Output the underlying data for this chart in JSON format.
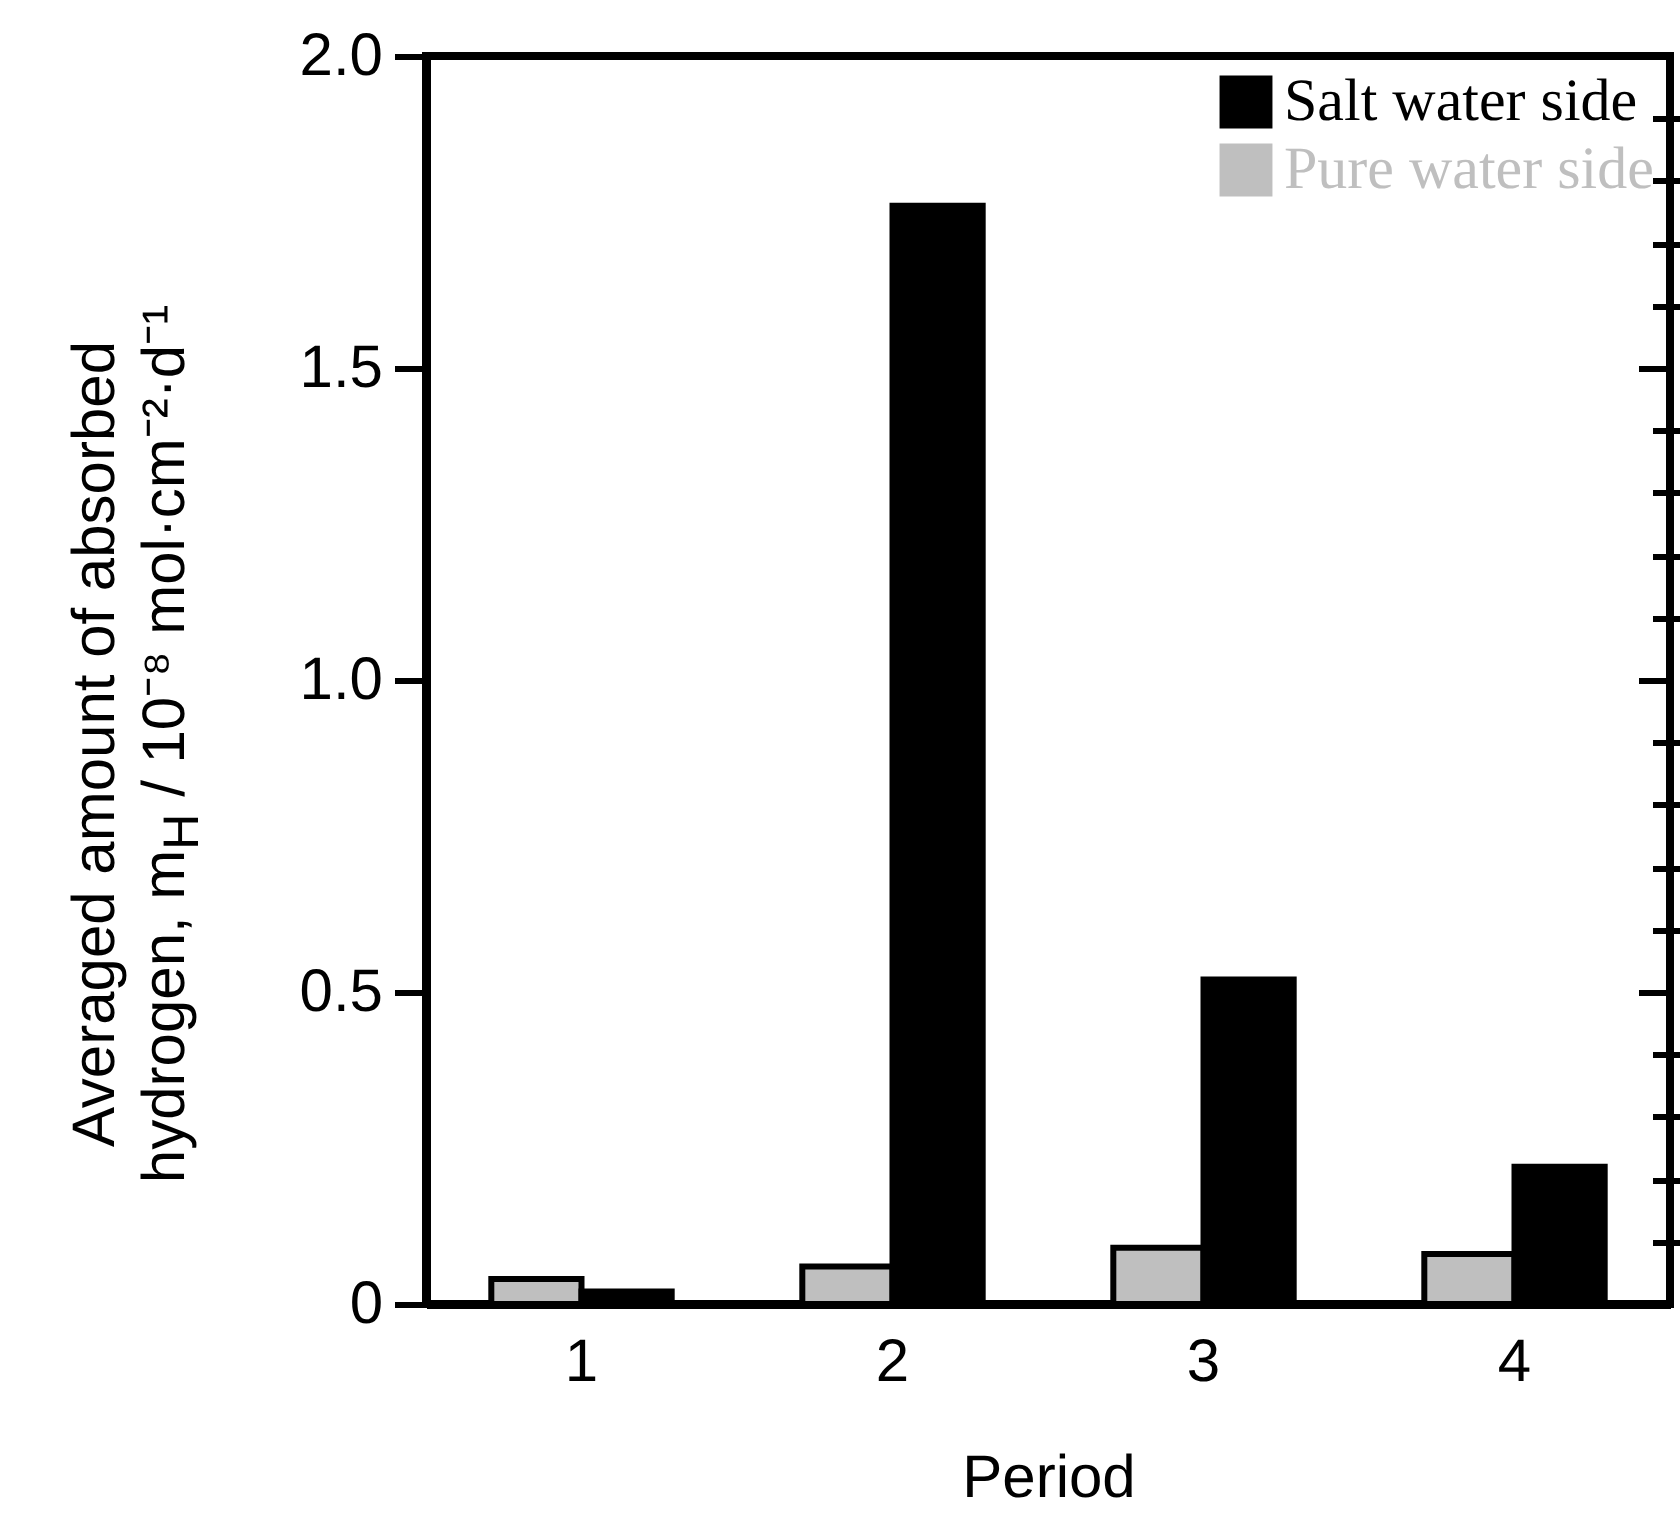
{
  "chart_data": {
    "type": "bar",
    "xlabel": "Period",
    "ylabel": "Averaged amount of absorbed hydrogen, m$_{H}$ / 10⁻⁸ mol·cm⁻²·d⁻¹",
    "categories": [
      "1",
      "2",
      "3",
      "4"
    ],
    "series": [
      {
        "name": "Pure water side",
        "color": "#bfbfbf",
        "values": [
          0.04,
          0.06,
          0.09,
          0.08
        ]
      },
      {
        "name": "Salt water side",
        "color": "#000000",
        "values": [
          0.02,
          1.76,
          0.52,
          0.22
        ]
      }
    ],
    "ylim": [
      0,
      2.0
    ],
    "yticks": [
      0,
      {
        "value": 0.1,
        "label": null
      },
      {
        "value": 0.2,
        "label": null
      },
      {
        "value": 0.3,
        "label": null
      },
      {
        "value": 0.4,
        "label": null
      },
      0.5,
      {
        "value": 0.6,
        "label": null
      },
      {
        "value": 0.7,
        "label": null
      },
      {
        "value": 0.8,
        "label": null
      },
      {
        "value": 0.9,
        "label": null
      },
      {
        "value": 1,
        "label": "1.0"
      },
      {
        "value": 1.1,
        "label": null
      },
      {
        "value": 1.2,
        "label": null
      },
      {
        "value": 1.3,
        "label": null
      },
      {
        "value": 1.4,
        "label": null
      },
      1.5,
      {
        "value": 1.6,
        "label": null
      },
      {
        "value": 1.7,
        "label": null
      },
      {
        "value": 1.8,
        "label": null
      },
      {
        "value": 1.9,
        "label": null
      },
      {
        "value": 2,
        "label": "2.0"
      }
    ],
    "legend": "top right",
    "grid": false
  }
}
